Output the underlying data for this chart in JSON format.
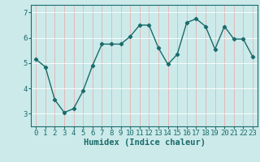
{
  "x": [
    0,
    1,
    2,
    3,
    4,
    5,
    6,
    7,
    8,
    9,
    10,
    11,
    12,
    13,
    14,
    15,
    16,
    17,
    18,
    19,
    20,
    21,
    22,
    23
  ],
  "y": [
    5.15,
    4.85,
    3.55,
    3.05,
    3.2,
    3.9,
    4.9,
    5.75,
    5.75,
    5.75,
    6.05,
    6.5,
    6.5,
    5.6,
    4.95,
    5.35,
    6.6,
    6.75,
    6.45,
    5.55,
    6.45,
    5.95,
    5.95,
    5.25
  ],
  "line_color": "#1a6b6b",
  "marker": "D",
  "marker_size": 2.2,
  "linewidth": 1.0,
  "bg_color": "#cceaea",
  "grid_color_v": "#e8b0b0",
  "grid_color_h": "#ffffff",
  "axis_bg": "#cceaea",
  "xlabel": "Humidex (Indice chaleur)",
  "ylim": [
    2.5,
    7.3
  ],
  "yticks": [
    3,
    4,
    5,
    6,
    7
  ],
  "xticks": [
    0,
    1,
    2,
    3,
    4,
    5,
    6,
    7,
    8,
    9,
    10,
    11,
    12,
    13,
    14,
    15,
    16,
    17,
    18,
    19,
    20,
    21,
    22,
    23
  ],
  "xlabel_fontsize": 7.5,
  "tick_fontsize": 6.5
}
